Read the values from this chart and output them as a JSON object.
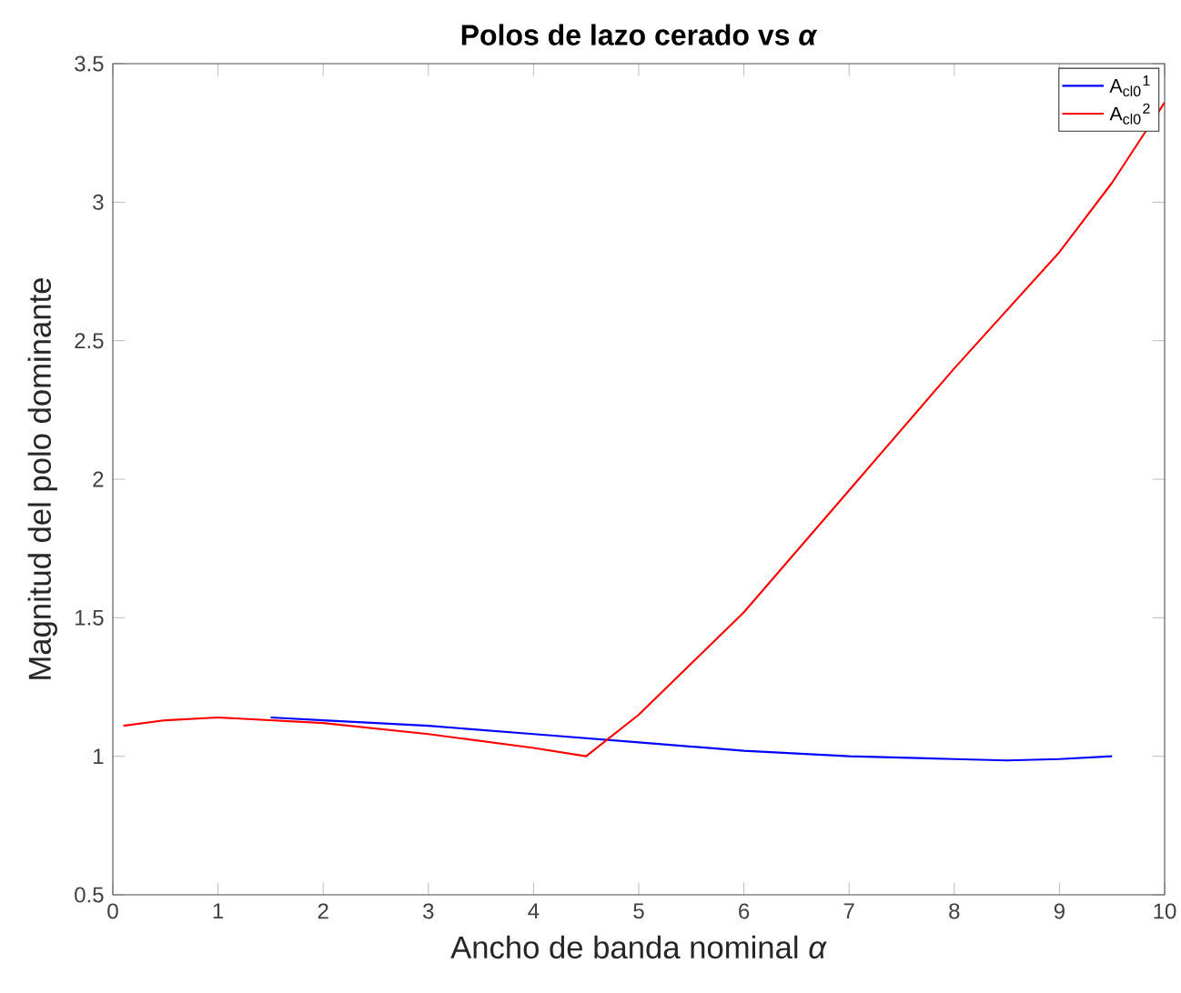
{
  "chart_data": {
    "type": "line",
    "title": "Polos de lazo cerado vs *α*",
    "xlabel": "Ancho de banda nominal *α*",
    "ylabel": "Magnitud del polo dominante",
    "xlim": [
      0,
      10
    ],
    "ylim": [
      0.5,
      3.5
    ],
    "xticks": [
      0,
      1,
      2,
      3,
      4,
      5,
      6,
      7,
      8,
      9,
      10
    ],
    "yticks": [
      0.5,
      1,
      1.5,
      2,
      2.5,
      3,
      3.5
    ],
    "grid": false,
    "legend": "top right",
    "marker": "none",
    "line_style": "solid",
    "series": [
      {
        "name": "A$_{cl0}$$^{1}$",
        "color": "#0000ff",
        "x": [
          1.5,
          2,
          3,
          4,
          5,
          6,
          7,
          8,
          8.5,
          9,
          9.5
        ],
        "values": [
          1.14,
          1.13,
          1.11,
          1.08,
          1.05,
          1.02,
          1.0,
          0.99,
          0.985,
          0.99,
          1.0
        ]
      },
      {
        "name": "A$_{cl0}$$^{2}$",
        "color": "#ff0000",
        "x": [
          0.1,
          0.5,
          1,
          2,
          3,
          4,
          4.5,
          5,
          6,
          7,
          8,
          9,
          9.5,
          10
        ],
        "values": [
          1.11,
          1.13,
          1.14,
          1.12,
          1.08,
          1.03,
          1.0,
          1.15,
          1.52,
          1.96,
          2.4,
          2.82,
          3.07,
          3.36
        ]
      }
    ]
  }
}
